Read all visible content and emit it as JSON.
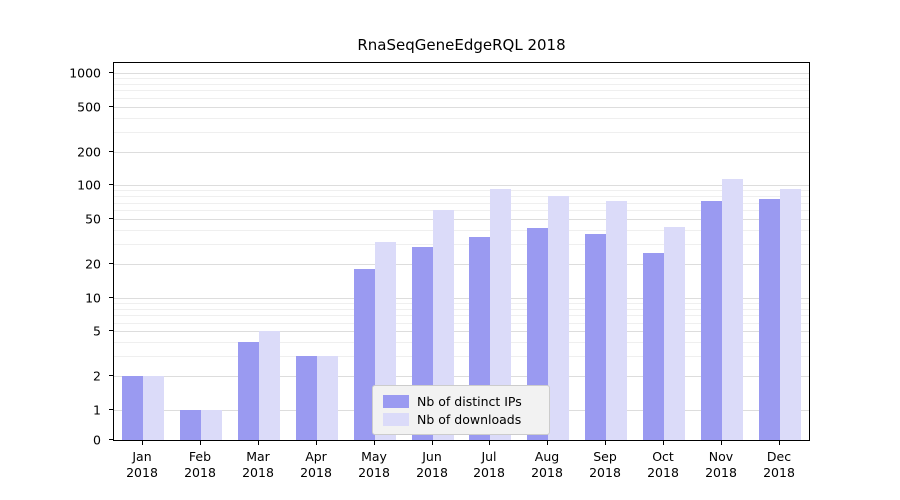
{
  "chart_data": {
    "type": "bar",
    "title": "RnaSeqGeneEdgeRQL 2018",
    "xlabel": "",
    "ylabel": "",
    "yscale": "symlog",
    "grid": true,
    "legend_position": "lower center",
    "ylim": [
      0,
      1200
    ],
    "year_label": "2018",
    "categories": [
      "Jan",
      "Feb",
      "Mar",
      "Apr",
      "May",
      "Jun",
      "Jul",
      "Aug",
      "Sep",
      "Oct",
      "Nov",
      "Dec"
    ],
    "yticks": [
      0,
      1,
      2,
      5,
      10,
      20,
      50,
      100,
      200,
      500,
      1000
    ],
    "minor_ticks": [
      3,
      4,
      6,
      7,
      8,
      9,
      30,
      40,
      60,
      70,
      80,
      90,
      300,
      400,
      600,
      700,
      800,
      900
    ],
    "series": [
      {
        "name": "Nb of distinct IPs",
        "color": "#9a9af1",
        "values": [
          2,
          1,
          4,
          3,
          18,
          28,
          35,
          42,
          37,
          25,
          72,
          75
        ]
      },
      {
        "name": "Nb of downloads",
        "color": "#dbdbf9",
        "values": [
          2,
          1,
          5,
          3,
          31,
          60,
          92,
          80,
          72,
          43,
          115,
          93
        ]
      }
    ]
  }
}
